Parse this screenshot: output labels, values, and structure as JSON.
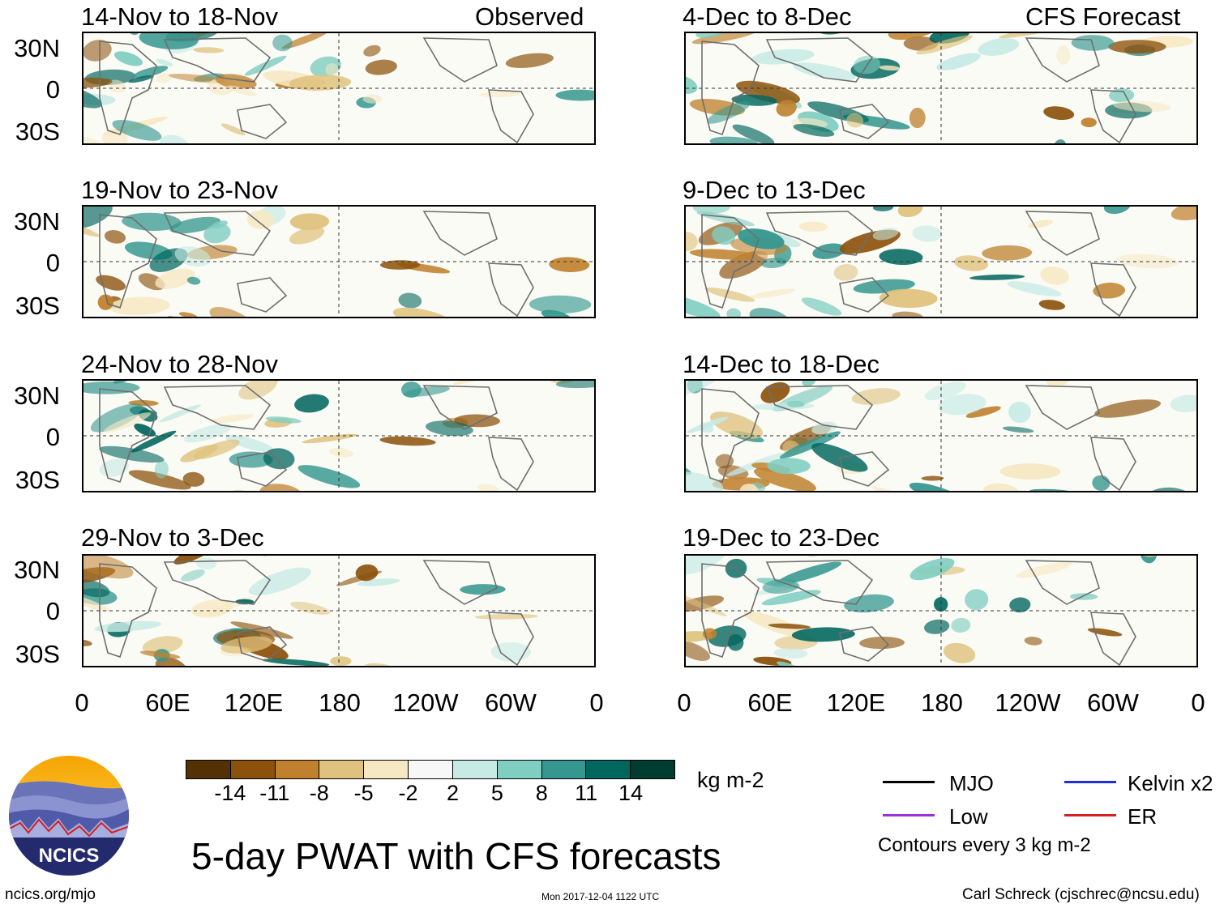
{
  "observed_label": "Observed",
  "forecast_label": "CFS Forecast",
  "lat_labels": [
    "30N",
    "0",
    "30S"
  ],
  "lon_labels": [
    "0",
    "60E",
    "120E",
    "180",
    "120W",
    "60W",
    "0"
  ],
  "left_panels": [
    {
      "title": "14-Nov to 18-Nov"
    },
    {
      "title": "19-Nov to 23-Nov"
    },
    {
      "title": "24-Nov to 28-Nov"
    },
    {
      "title": "29-Nov to 3-Dec"
    }
  ],
  "right_panels": [
    {
      "title": "4-Dec to 8-Dec"
    },
    {
      "title": "9-Dec to 13-Dec"
    },
    {
      "title": "14-Dec to 18-Dec"
    },
    {
      "title": "19-Dec to 23-Dec"
    }
  ],
  "colorbar": {
    "ticks": [
      "-14",
      "-11",
      "-8",
      "-5",
      "-2",
      "2",
      "5",
      "8",
      "11",
      "14"
    ],
    "colors": [
      "#543005",
      "#8c510a",
      "#bf812d",
      "#dfc27d",
      "#f6e8c3",
      "#f7f7f7",
      "#c7eae5",
      "#80cdc1",
      "#35978f",
      "#01665e",
      "#003c30"
    ],
    "units": "kg m-2"
  },
  "title": "5-day PWAT with CFS forecasts",
  "legend": {
    "mjo": "MJO",
    "kelvin": "Kelvin x2",
    "low": "Low",
    "er": "ER",
    "contours": "Contours every 3 kg m-2",
    "colors": {
      "mjo": "#000000",
      "kelvin": "#1f2fd6",
      "low": "#9b30e0",
      "er": "#d42020"
    }
  },
  "footer": {
    "url": "ncics.org/mjo",
    "timestamp": "Mon 2017-12-04 1122 UTC",
    "author": "Carl Schreck (cjschrec@ncsu.edu)"
  },
  "logo": {
    "text": "NCICS"
  }
}
